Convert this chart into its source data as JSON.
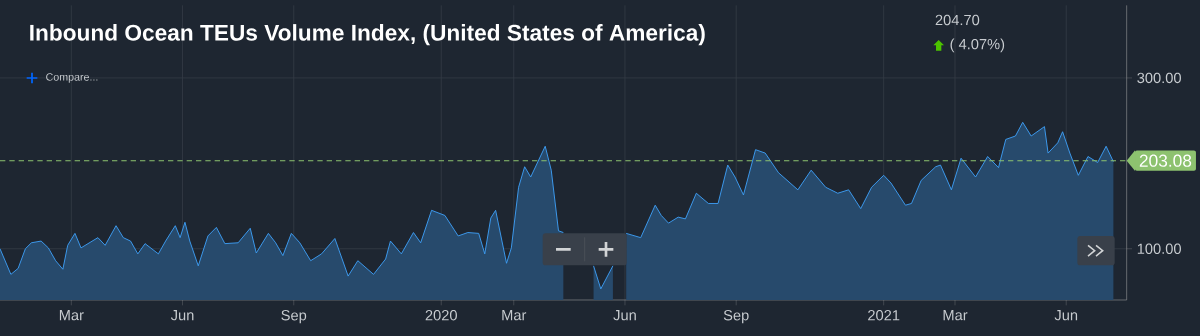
{
  "chart_data": {
    "type": "area",
    "title": "Inbound Ocean TEUs Volume Index, (United States of America)",
    "annotations": [
      "204.70",
      "( 4.07%)",
      "Compare..."
    ],
    "x": [
      "2019-01-01",
      "2019-01-10",
      "2019-01-16",
      "2019-01-22",
      "2019-01-27",
      "2019-02-04",
      "2019-02-10",
      "2019-02-16",
      "2019-02-22",
      "2019-02-26",
      "2019-03-04",
      "2019-03-09",
      "2019-03-23",
      "2019-03-29",
      "2019-04-07",
      "2019-04-13",
      "2019-04-19",
      "2019-04-25",
      "2019-05-01",
      "2019-05-12",
      "2019-05-18",
      "2019-05-26",
      "2019-05-30",
      "2019-06-03",
      "2019-06-07",
      "2019-06-14",
      "2019-06-22",
      "2019-06-29",
      "2019-07-06",
      "2019-07-17",
      "2019-07-27",
      "2019-08-01",
      "2019-08-11",
      "2019-08-17",
      "2019-08-23",
      "2019-08-30",
      "2019-09-06",
      "2019-09-15",
      "2019-09-24",
      "2019-10-05",
      "2019-10-16",
      "2019-10-24",
      "2019-11-06",
      "2019-11-16",
      "2019-11-20",
      "2019-11-29",
      "2019-12-09",
      "2019-12-15",
      "2019-12-24",
      "2020-01-04",
      "2020-01-15",
      "2020-01-23",
      "2020-02-01",
      "2020-02-06",
      "2020-02-11",
      "2020-02-15",
      "2020-02-24",
      "2020-02-28",
      "2020-03-05",
      "2020-03-10",
      "2020-03-15",
      "2020-03-27",
      "2020-04-01",
      "2020-04-07",
      "2020-04-11",
      "2020-04-23",
      "2020-05-06",
      "2020-05-12",
      "2020-05-22",
      "2020-05-27",
      "2020-06-02",
      "2020-06-14",
      "2020-06-26",
      "2020-07-01",
      "2020-07-07",
      "2020-07-15",
      "2020-07-21",
      "2020-07-30",
      "2020-08-09",
      "2020-08-17",
      "2020-08-25",
      "2020-08-31",
      "2020-09-07",
      "2020-09-17",
      "2020-09-25",
      "2020-10-06",
      "2020-10-22",
      "2020-11-02",
      "2020-11-14",
      "2020-11-24",
      "2020-12-03",
      "2020-12-13",
      "2020-12-22",
      "2021-01-01",
      "2021-01-07",
      "2021-01-19",
      "2021-01-24",
      "2021-02-01",
      "2021-02-13",
      "2021-02-17",
      "2021-02-26",
      "2021-03-06",
      "2021-03-18",
      "2021-03-28",
      "2021-04-06",
      "2021-04-12",
      "2021-04-20",
      "2021-04-26",
      "2021-05-03",
      "2021-05-14",
      "2021-05-17",
      "2021-05-25",
      "2021-05-29",
      "2021-06-04",
      "2021-06-11",
      "2021-06-19",
      "2021-06-27",
      "2021-07-04",
      "2021-07-10"
    ],
    "series": [
      {
        "color": "#3d9ef5",
        "values": [
          100,
          70,
          77,
          100,
          107,
          109,
          101,
          86,
          76,
          104,
          118,
          101,
          113,
          104,
          127,
          113,
          109,
          94,
          106,
          94,
          109,
          127,
          113,
          131,
          109,
          80,
          115,
          125,
          106,
          107,
          124,
          95,
          118,
          107,
          92,
          118,
          107,
          86,
          94,
          112,
          68,
          86,
          70,
          88,
          109,
          94,
          119,
          107,
          145,
          139,
          115,
          119,
          118,
          94,
          136,
          145,
          83,
          101,
          172,
          196,
          184,
          220,
          192,
          121,
          119,
          null,
          80,
          53,
          80,
          null,
          118,
          113,
          151,
          139,
          130,
          137,
          135,
          165,
          153,
          153,
          198,
          184,
          163,
          216,
          212,
          189,
          169,
          192,
          172,
          165,
          169,
          147,
          172,
          186,
          177,
          151,
          153,
          180,
          196,
          198,
          169,
          206,
          184,
          208,
          195,
          228,
          232,
          248,
          232,
          243,
          212,
          224,
          237,
          212,
          186,
          208,
          201,
          220,
          202
        ]
      }
    ],
    "xlim": [
      "2019-01-01",
      "2021-07-21"
    ],
    "xticks": [
      {
        "value": "2019-03-01",
        "label": "Mar"
      },
      {
        "value": "2019-06-01",
        "label": "Jun"
      },
      {
        "value": "2019-09-01",
        "label": "Sep"
      },
      {
        "value": "2020-01-01",
        "label": "2020"
      },
      {
        "value": "2020-03-01",
        "label": "Mar"
      },
      {
        "value": "2020-06-01",
        "label": "Jun"
      },
      {
        "value": "2020-09-01",
        "label": "Sep"
      },
      {
        "value": "2021-01-01",
        "label": "2021"
      },
      {
        "value": "2021-03-01",
        "label": "Mar"
      },
      {
        "value": "2021-06-01",
        "label": "Jun"
      }
    ],
    "ylim": [
      40,
      385
    ],
    "yticks": [
      {
        "value": 100,
        "label": "100.00"
      },
      {
        "value": 300,
        "label": "300.00"
      }
    ],
    "ref_lines": [
      {
        "axis": "y",
        "value": 203.08,
        "label": "203.08",
        "color": "#8dc26f",
        "line_style": "dashed"
      }
    ],
    "grid": true
  }
}
